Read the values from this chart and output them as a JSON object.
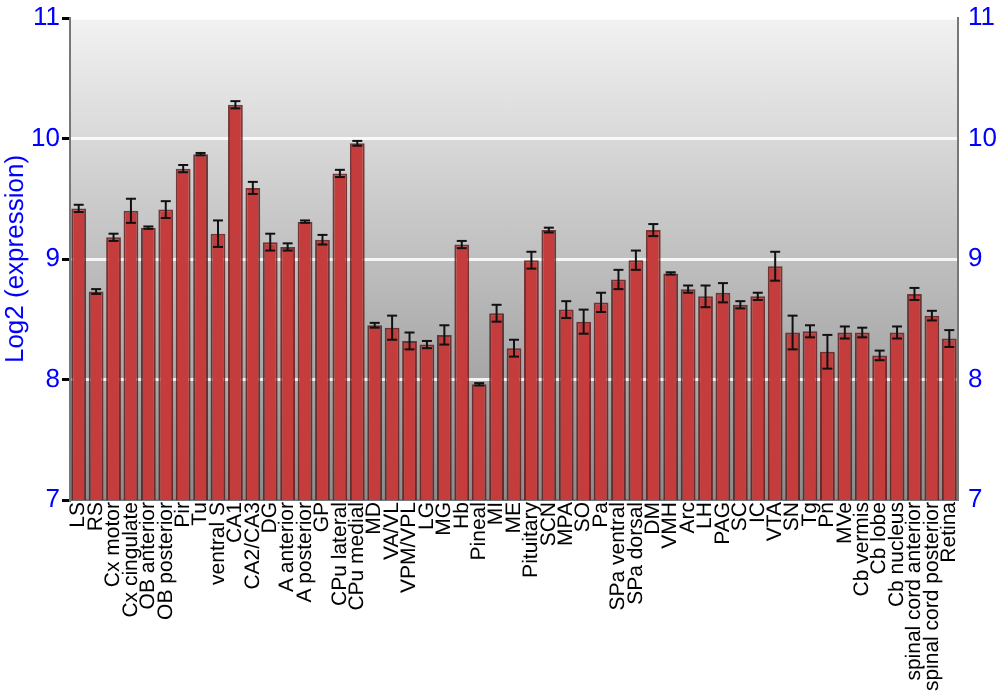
{
  "chart_data": {
    "type": "bar",
    "ylabel": "Log2 (expression)",
    "categories": [
      "LS",
      "RS",
      "Cx motor",
      "Cx cingulate",
      "OB anterior",
      "OB posterior",
      "Pir",
      "Tu",
      "ventral S",
      "CA1",
      "CA2/CA3",
      "DG",
      "A anterior",
      "A posterior",
      "GP",
      "CPu lateral",
      "CPu medial",
      "MD",
      "VA/VL",
      "VPM/VPL",
      "LG",
      "MG",
      "Hb",
      "Pineal",
      "MI",
      "ME",
      "Pituitary",
      "SCN",
      "MPA",
      "SO",
      "Pa",
      "SPa ventral",
      "SPa dorsal",
      "DM",
      "VMH",
      "Arc",
      "LH",
      "PAG",
      "SC",
      "IC",
      "VTA",
      "SN",
      "Tg",
      "Pn",
      "MVe",
      "Cb vermis",
      "Cb lobe",
      "Cb nucleus",
      "spinal cord anterior",
      "spinal cord posterior",
      "Retina"
    ],
    "values": [
      9.42,
      8.73,
      9.18,
      9.4,
      9.26,
      9.41,
      9.75,
      9.87,
      9.21,
      10.28,
      9.59,
      9.14,
      9.1,
      9.31,
      9.16,
      9.71,
      9.96,
      8.45,
      8.43,
      8.32,
      8.29,
      8.37,
      9.12,
      7.96,
      8.55,
      8.26,
      8.99,
      9.24,
      8.58,
      8.48,
      8.64,
      8.83,
      8.99,
      9.24,
      8.88,
      8.75,
      8.69,
      8.72,
      8.62,
      8.69,
      8.94,
      8.39,
      8.4,
      8.23,
      8.39,
      8.39,
      8.2,
      8.39,
      8.71,
      8.53,
      8.34
    ],
    "errors": [
      0.03,
      0.02,
      0.03,
      0.1,
      0.01,
      0.07,
      0.03,
      0.01,
      0.11,
      0.03,
      0.05,
      0.07,
      0.03,
      0.01,
      0.04,
      0.03,
      0.02,
      0.02,
      0.1,
      0.07,
      0.03,
      0.08,
      0.03,
      0.01,
      0.07,
      0.07,
      0.07,
      0.02,
      0.07,
      0.1,
      0.08,
      0.08,
      0.08,
      0.05,
      0.01,
      0.03,
      0.09,
      0.08,
      0.03,
      0.03,
      0.12,
      0.14,
      0.05,
      0.14,
      0.05,
      0.04,
      0.04,
      0.05,
      0.05,
      0.04,
      0.07
    ],
    "color": "#c43c3c",
    "ylim": [
      7,
      11
    ],
    "yticks": [
      7,
      8,
      9,
      10,
      11
    ],
    "y2lim": [
      7,
      11
    ],
    "y2ticks": [
      7,
      8,
      9,
      10,
      11
    ],
    "grid": "y",
    "legend": false
  }
}
